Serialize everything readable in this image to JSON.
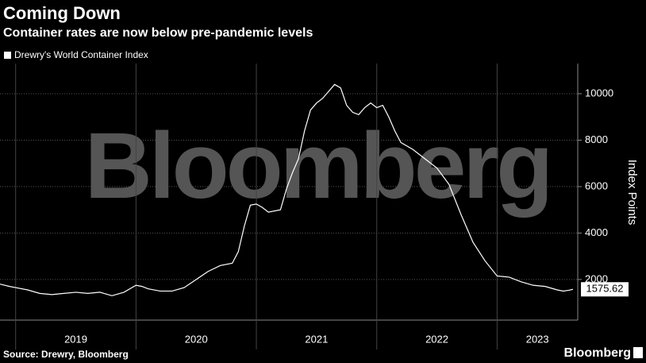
{
  "chart_data": {
    "type": "line",
    "title": "Coming Down",
    "subtitle": "Container rates are now below pre-pandemic levels",
    "y_label": "Index Points",
    "source": "Source: Drewry, Bloomberg",
    "brand": "Bloomberg",
    "watermark": "Bloomberg",
    "x": [
      2018.87,
      2018.95,
      2019.0,
      2019.1,
      2019.2,
      2019.3,
      2019.4,
      2019.5,
      2019.6,
      2019.7,
      2019.8,
      2019.9,
      2020.0,
      2020.05,
      2020.1,
      2020.2,
      2020.3,
      2020.4,
      2020.5,
      2020.6,
      2020.7,
      2020.8,
      2020.85,
      2020.9,
      2020.95,
      2021.0,
      2021.05,
      2021.1,
      2021.2,
      2021.25,
      2021.3,
      2021.35,
      2021.4,
      2021.45,
      2021.5,
      2021.55,
      2021.6,
      2021.65,
      2021.7,
      2021.75,
      2021.8,
      2021.85,
      2021.9,
      2021.95,
      2022.0,
      2022.05,
      2022.1,
      2022.15,
      2022.2,
      2022.3,
      2022.4,
      2022.5,
      2022.6,
      2022.7,
      2022.8,
      2022.9,
      2023.0,
      2023.1,
      2023.2,
      2023.3,
      2023.4,
      2023.5,
      2023.55,
      2023.6,
      2023.63
    ],
    "series": [
      {
        "name": "Drewry's World Container Index",
        "color": "#ffffff",
        "values": [
          1800,
          1700,
          1650,
          1550,
          1400,
          1350,
          1400,
          1450,
          1400,
          1450,
          1300,
          1450,
          1750,
          1700,
          1600,
          1500,
          1500,
          1650,
          2000,
          2350,
          2600,
          2700,
          3200,
          4300,
          5200,
          5250,
          5100,
          4900,
          5000,
          5900,
          6600,
          7200,
          8400,
          9300,
          9600,
          9800,
          10100,
          10400,
          10250,
          9500,
          9200,
          9100,
          9400,
          9600,
          9400,
          9500,
          9000,
          8400,
          7900,
          7600,
          7200,
          6800,
          6100,
          4800,
          3600,
          2800,
          2150,
          2100,
          1900,
          1750,
          1700,
          1550,
          1500,
          1540,
          1575.62
        ]
      }
    ],
    "xlim": [
      2018.87,
      2023.67
    ],
    "xticks": [
      2019,
      2020,
      2021,
      2022,
      2023
    ],
    "ylim": [
      250,
      11300
    ],
    "yticks": [
      2000,
      4000,
      6000,
      8000,
      10000
    ],
    "grid": true
  }
}
